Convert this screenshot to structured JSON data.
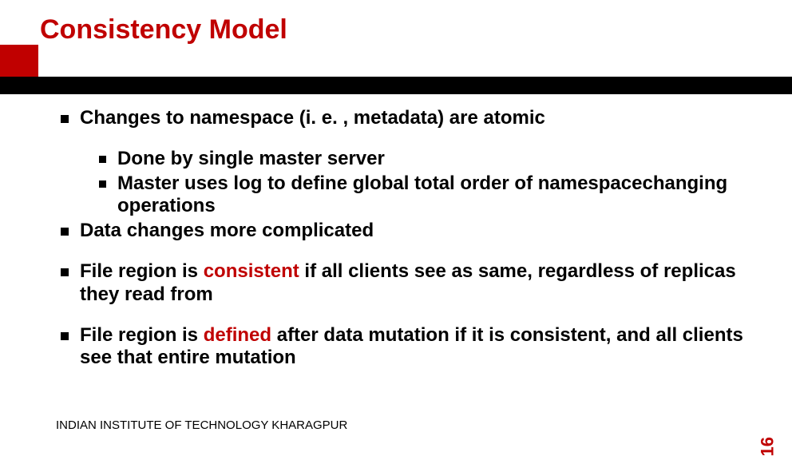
{
  "title": "Consistency Model",
  "colors": {
    "accent": "#c00000",
    "band": "#000000",
    "bg": "#ffffff"
  },
  "bullets": {
    "b1": "Changes to namespace (i. e. , metadata) are atomic",
    "b1a": "Done by single master server",
    "b1b": "Master uses log to define global total order of namespacechanging operations",
    "b2": "Data changes more complicated",
    "b3_pre": "File region is ",
    "b3_word": "consistent",
    "b3_post": " if all clients see as same, regardless of replicas they read from",
    "b4_pre": "File region is ",
    "b4_word": "defined",
    "b4_post": " after data mutation if it is consistent, and all clients see that entire mutation"
  },
  "footer": "INDIAN INSTITUTE OF TECHNOLOGY KHARAGPUR",
  "page": "16"
}
